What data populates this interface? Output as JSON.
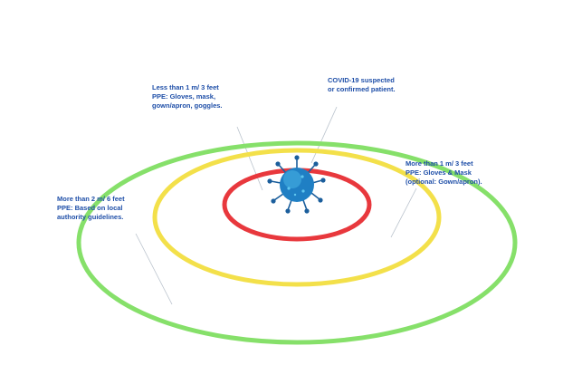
{
  "colors": {
    "label_text": "#1f4fa8",
    "leader_line": "#b9c2cc",
    "ring_red": "#e8383d",
    "ring_yellow": "#f3e04a",
    "ring_green": "#86e06a",
    "virus_body": "#1f7fc4",
    "virus_highlight": "#49b4e6",
    "virus_spike": "#1b5e9c"
  },
  "annotations": {
    "close_contact": {
      "line1": "Less than 1 m/ 3 feet",
      "line2": "PPE: Gloves, mask,",
      "line3": "gown/apron, goggles."
    },
    "patient": {
      "line1": "COVID-19 suspected",
      "line2": "or confirmed patient."
    },
    "middle_zone": {
      "line1": "More than 1 m/ 3 feet",
      "line2": "PPE: Gloves & Mask",
      "line3": "(optional: Gown/apron)."
    },
    "outer_zone": {
      "line1": "More than 2 m/ 6 feet",
      "line2": "PPE: Based on local",
      "line3": "authority guidelines."
    }
  },
  "icons": {
    "virus": "coronavirus-icon"
  }
}
